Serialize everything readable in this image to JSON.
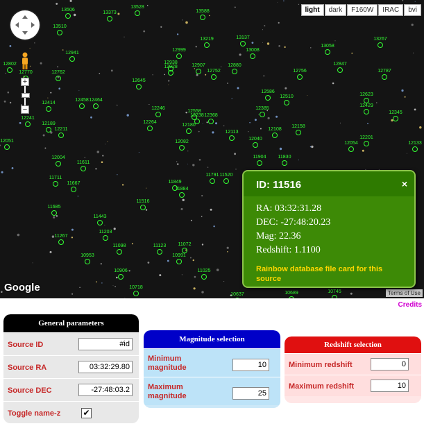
{
  "map": {
    "map_types": [
      {
        "label": "light",
        "active": true
      },
      {
        "label": "dark",
        "active": false
      },
      {
        "label": "F160W",
        "active": false
      },
      {
        "label": "IRAC",
        "active": false
      },
      {
        "label": "bvi",
        "active": false
      }
    ],
    "google_logo": "Google",
    "terms": "Terms of Use",
    "marker_color": "#33ff33",
    "sources": [
      {
        "id": "13506"
      },
      {
        "id": "13373"
      },
      {
        "id": "13528"
      },
      {
        "id": "13588"
      },
      {
        "id": "13510"
      },
      {
        "id": "13219"
      },
      {
        "id": "13137"
      },
      {
        "id": "13058"
      },
      {
        "id": "13267"
      },
      {
        "id": "12941"
      },
      {
        "id": "12999"
      },
      {
        "id": "13008"
      },
      {
        "id": "12802"
      },
      {
        "id": "12770"
      },
      {
        "id": "12762"
      },
      {
        "id": "12928"
      },
      {
        "id": "12907"
      },
      {
        "id": "12752"
      },
      {
        "id": "12880"
      },
      {
        "id": "12756"
      },
      {
        "id": "12847"
      },
      {
        "id": "12787"
      },
      {
        "id": "12645"
      },
      {
        "id": "12586"
      },
      {
        "id": "12510"
      },
      {
        "id": "12623"
      },
      {
        "id": "12429"
      },
      {
        "id": "12458"
      },
      {
        "id": "12464"
      },
      {
        "id": "12414"
      },
      {
        "id": "12246"
      },
      {
        "id": "12385"
      },
      {
        "id": "12345"
      },
      {
        "id": "12241"
      },
      {
        "id": "12189"
      },
      {
        "id": "12211"
      },
      {
        "id": "12264"
      },
      {
        "id": "12180"
      },
      {
        "id": "12113"
      },
      {
        "id": "12108"
      },
      {
        "id": "12158"
      },
      {
        "id": "12051"
      },
      {
        "id": "12082"
      },
      {
        "id": "12040"
      },
      {
        "id": "12054"
      },
      {
        "id": "12201"
      },
      {
        "id": "12133"
      },
      {
        "id": "12004"
      },
      {
        "id": "11611"
      },
      {
        "id": "11904"
      },
      {
        "id": "11830"
      },
      {
        "id": "11711"
      },
      {
        "id": "11667"
      },
      {
        "id": "11849"
      },
      {
        "id": "11884"
      },
      {
        "id": "11791"
      },
      {
        "id": "11520"
      },
      {
        "id": "11685"
      },
      {
        "id": "11516"
      },
      {
        "id": "11443"
      },
      {
        "id": "11267"
      },
      {
        "id": "11203"
      },
      {
        "id": "11098"
      },
      {
        "id": "11123"
      },
      {
        "id": "11072"
      },
      {
        "id": "10991"
      },
      {
        "id": "10953"
      },
      {
        "id": "10906"
      },
      {
        "id": "11025"
      },
      {
        "id": "10718"
      },
      {
        "id": "10637"
      },
      {
        "id": "10689"
      },
      {
        "id": "10745"
      },
      {
        "id": "12238"
      },
      {
        "id": "12368"
      },
      {
        "id": "12558"
      },
      {
        "id": "12938"
      }
    ]
  },
  "popup": {
    "title": "ID: 11516",
    "close": "×",
    "ra": "RA: 03:32:31.28",
    "dec": "DEC: -27:48:20.23",
    "mag": "Mag: 22.36",
    "redshift": "Redshift: 1.1100",
    "link": "Rainbow database file card for this source"
  },
  "credits": "Credits",
  "general": {
    "title": "General parameters",
    "source_id_label": "Source ID",
    "source_id_value": "#id",
    "source_ra_label": "Source RA",
    "source_ra_value": "03:32:29.80",
    "source_dec_label": "Source DEC",
    "source_dec_value": "-27:48:03.2",
    "toggle_label": "Toggle name-z",
    "toggle_checked": true,
    "check_mark": "✔"
  },
  "magnitude": {
    "title": "Magnitude selection",
    "min_label": "Minimum magnitude",
    "min_value": "10",
    "max_label": "Maximum magnitude",
    "max_value": "25"
  },
  "redshift": {
    "title": "Redshift selection",
    "min_label": "Minimum redshift",
    "min_value": "0",
    "max_label": "Maximum redshift",
    "max_value": "10"
  }
}
